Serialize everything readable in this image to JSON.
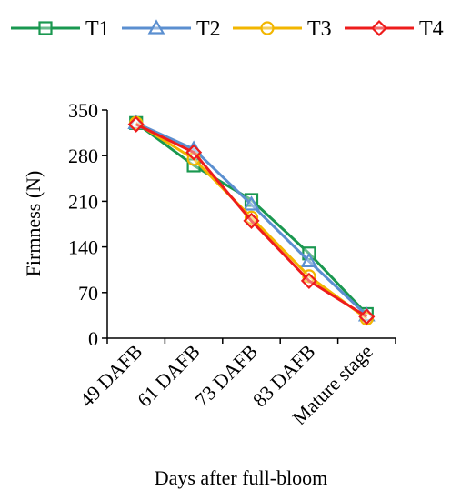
{
  "chart_data": {
    "type": "line",
    "title": "",
    "xlabel": "Days after full-bloom",
    "ylabel": "Firmness (N)",
    "ylim": [
      0,
      350
    ],
    "yticks": [
      0,
      70,
      140,
      210,
      280,
      350
    ],
    "categories": [
      "49 DAFB",
      "61 DAFB",
      "73 DAFB",
      "83 DAFB",
      "Mature stage"
    ],
    "legend_position": "top",
    "grid": false,
    "series": [
      {
        "name": "T1",
        "color": "#1a9850",
        "marker": "square",
        "values": [
          330,
          265,
          212,
          130,
          37
        ]
      },
      {
        "name": "T2",
        "color": "#5b8fd0",
        "marker": "triangle",
        "values": [
          330,
          290,
          205,
          118,
          35
        ]
      },
      {
        "name": "T3",
        "color": "#f2b600",
        "marker": "circle",
        "values": [
          330,
          275,
          185,
          95,
          30
        ]
      },
      {
        "name": "T4",
        "color": "#ee1c1c",
        "marker": "diamond",
        "values": [
          328,
          285,
          180,
          88,
          33
        ]
      }
    ]
  }
}
